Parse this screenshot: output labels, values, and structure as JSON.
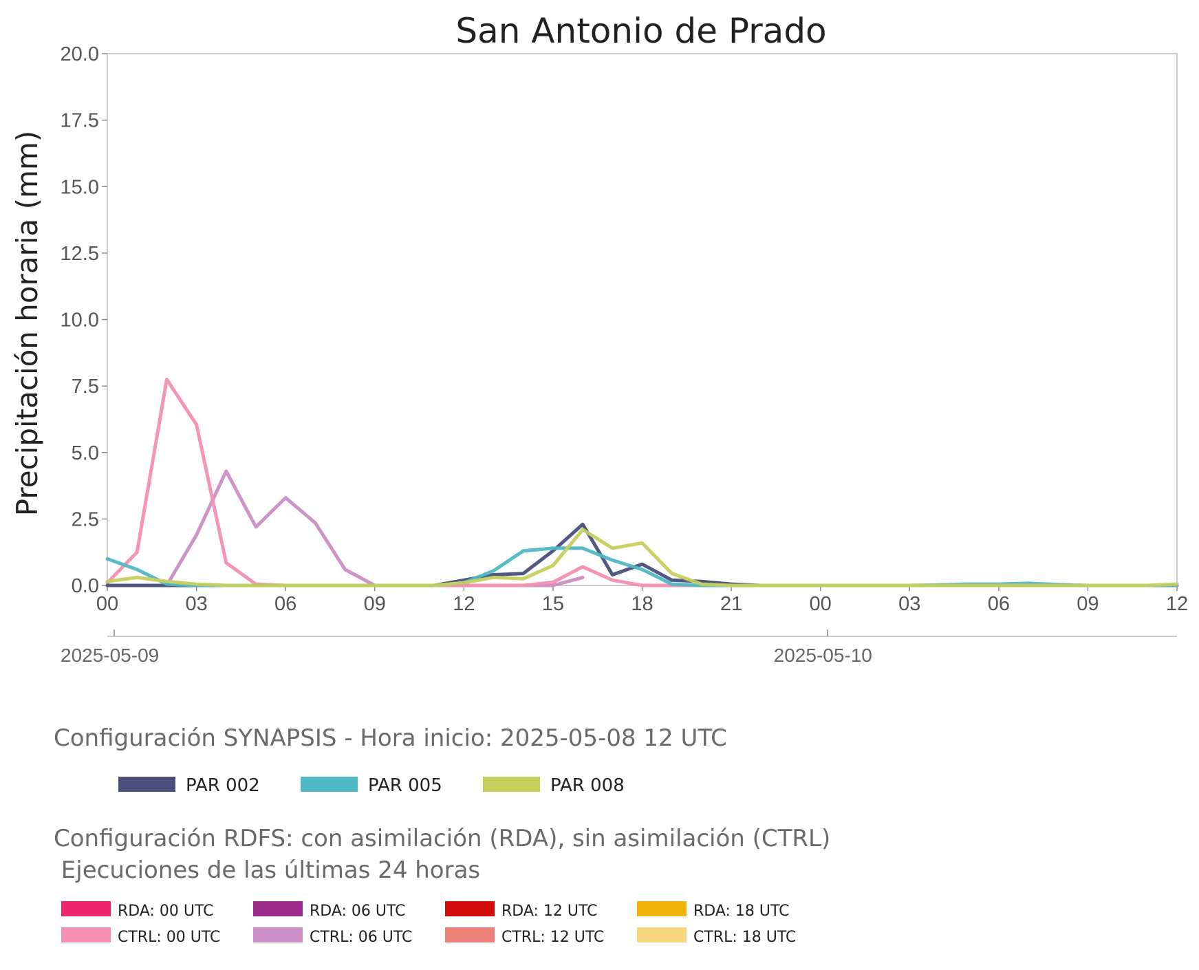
{
  "title": "San Antonio de Prado",
  "chart_data": {
    "type": "line",
    "title": "San Antonio de Prado",
    "ylabel": "Precipitación horaria (mm)",
    "xlabel": "",
    "ylim": [
      0,
      20
    ],
    "yticks": [
      "0.0",
      "2.5",
      "5.0",
      "7.5",
      "10.0",
      "12.5",
      "15.0",
      "17.5",
      "20.0"
    ],
    "xlim_hours": [
      0,
      36
    ],
    "xtick_labels": [
      "00",
      "03",
      "06",
      "09",
      "12",
      "15",
      "18",
      "21",
      "00",
      "03",
      "06",
      "09",
      "12"
    ],
    "date_labels": [
      {
        "label": "2025-05-09",
        "hour": 0
      },
      {
        "label": "2025-05-10",
        "hour": 24
      }
    ],
    "grid": false,
    "series": [
      {
        "name": "CTRL: 06 UTC",
        "color": "#c98ec4",
        "hours": [
          2,
          3,
          4,
          5,
          6,
          7,
          8,
          9,
          10,
          11,
          12,
          13,
          14,
          15,
          16
        ],
        "values": [
          0,
          1.9,
          4.3,
          2.2,
          3.3,
          2.35,
          0.6,
          0,
          0,
          0,
          0,
          0,
          0,
          0,
          0.3
        ]
      },
      {
        "name": "CTRL: 00 UTC",
        "color": "#f48fb1",
        "hours": [
          0,
          1,
          2,
          3,
          4,
          5,
          6,
          7,
          8,
          9,
          10,
          11,
          12,
          13,
          14,
          15,
          16,
          17,
          18,
          19,
          20,
          21,
          22,
          23,
          24,
          25,
          26,
          27
        ],
        "values": [
          0.1,
          1.25,
          7.75,
          6.05,
          0.85,
          0.05,
          0,
          0,
          0,
          0,
          0,
          0,
          0,
          0,
          0,
          0.12,
          0.7,
          0.2,
          0,
          0,
          0,
          0,
          0,
          0,
          0,
          0,
          0,
          0
        ]
      },
      {
        "name": "PAR 002",
        "color": "#4a4f7c",
        "hours": [
          0,
          1,
          2,
          3,
          4,
          5,
          6,
          7,
          8,
          9,
          10,
          11,
          12,
          13,
          14,
          15,
          16,
          17,
          18,
          19,
          20,
          21,
          22,
          23,
          24,
          25,
          26,
          27,
          28,
          29,
          30,
          31,
          32,
          33,
          34,
          35,
          36
        ],
        "values": [
          0,
          0,
          0,
          0,
          0,
          0,
          0,
          0,
          0,
          0,
          0,
          0,
          0.2,
          0.4,
          0.45,
          1.3,
          2.3,
          0.4,
          0.8,
          0.2,
          0.15,
          0.05,
          0,
          0,
          0,
          0,
          0,
          0,
          0,
          0,
          0,
          0,
          0,
          0,
          0,
          0,
          0
        ]
      },
      {
        "name": "PAR 005",
        "color": "#4eb8c4",
        "hours": [
          0,
          1,
          2,
          3,
          4,
          5,
          6,
          7,
          8,
          9,
          10,
          11,
          12,
          13,
          14,
          15,
          16,
          17,
          18,
          19,
          20,
          21,
          22,
          23,
          24,
          25,
          26,
          27,
          28,
          29,
          30,
          31,
          32,
          33,
          34,
          35,
          36
        ],
        "values": [
          1.0,
          0.6,
          0.05,
          0,
          0,
          0,
          0,
          0,
          0,
          0,
          0,
          0,
          0.1,
          0.55,
          1.3,
          1.4,
          1.4,
          0.95,
          0.6,
          0.05,
          0,
          0,
          0,
          0,
          0,
          0,
          0,
          0,
          0.02,
          0.05,
          0.05,
          0.08,
          0.03,
          0,
          0,
          0,
          0
        ]
      },
      {
        "name": "PAR 008",
        "color": "#c6cf5e",
        "hours": [
          0,
          1,
          2,
          3,
          4,
          5,
          6,
          7,
          8,
          9,
          10,
          11,
          12,
          13,
          14,
          15,
          16,
          17,
          18,
          19,
          20,
          21,
          22,
          23,
          24,
          25,
          26,
          27,
          28,
          29,
          30,
          31,
          32,
          33,
          34,
          35,
          36
        ],
        "values": [
          0.15,
          0.3,
          0.15,
          0.05,
          0,
          0,
          0,
          0,
          0,
          0,
          0,
          0,
          0.1,
          0.3,
          0.25,
          0.75,
          2.1,
          1.4,
          1.6,
          0.45,
          0.05,
          0,
          0,
          0,
          0,
          0,
          0,
          0,
          0,
          0,
          0,
          0,
          0,
          0,
          0,
          0,
          0.05
        ]
      }
    ]
  },
  "synapsis": {
    "heading": "Configuración SYNAPSIS - Hora inicio: 2025-05-08 12 UTC",
    "items": [
      {
        "label": "PAR 002",
        "color": "#4a4f7c"
      },
      {
        "label": "PAR 005",
        "color": "#4eb8c4"
      },
      {
        "label": "PAR 008",
        "color": "#c6cf5e"
      }
    ]
  },
  "rdfs": {
    "heading_line1": "Configuración RDFS: con asimilación (RDA), sin asimilación (CTRL)",
    "heading_line2": " Ejecuciones de las últimas 24 horas",
    "items": [
      {
        "label": "RDA: 00 UTC",
        "color": "#f0246c"
      },
      {
        "label": "CTRL: 00 UTC",
        "color": "#f48fb1"
      },
      {
        "label": "RDA: 06 UTC",
        "color": "#9b2a8a"
      },
      {
        "label": "CTRL: 06 UTC",
        "color": "#cd90c6"
      },
      {
        "label": "RDA: 12 UTC",
        "color": "#d40b0b"
      },
      {
        "label": "CTRL: 12 UTC",
        "color": "#eb8078"
      },
      {
        "label": "RDA: 18 UTC",
        "color": "#efb30a"
      },
      {
        "label": "CTRL: 18 UTC",
        "color": "#f6d77f"
      }
    ]
  }
}
